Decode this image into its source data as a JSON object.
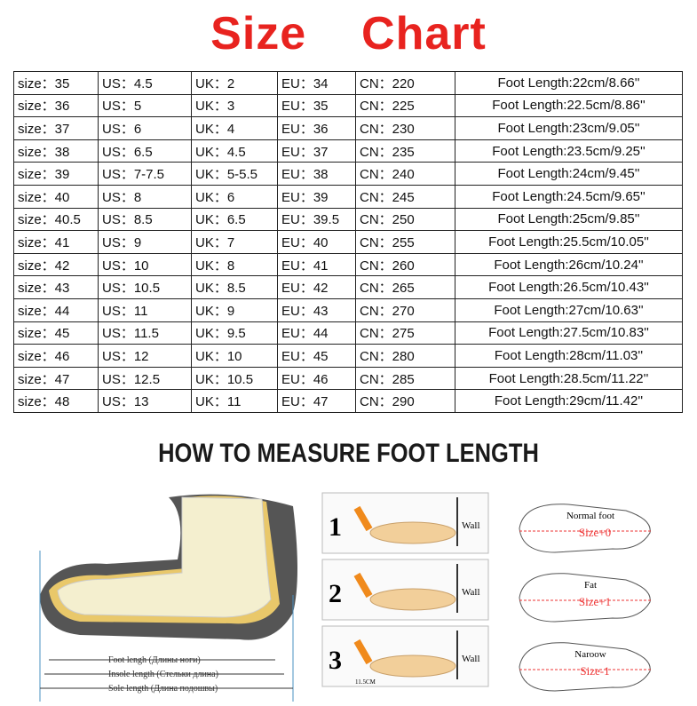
{
  "header": {
    "title": "Size    Chart"
  },
  "table": {
    "rows": [
      [
        "size：35",
        "US：4.5",
        "UK：2",
        "EU：34",
        "CN：220",
        "Foot Length:22cm/8.66''"
      ],
      [
        "size：36",
        "US：5",
        "UK：3",
        "EU：35",
        "CN：225",
        "Foot Length:22.5cm/8.86''"
      ],
      [
        "size：37",
        "US：6",
        "UK：4",
        "EU：36",
        "CN：230",
        "Foot Length:23cm/9.05''"
      ],
      [
        "size：38",
        "US：6.5",
        "UK：4.5",
        "EU：37",
        "CN：235",
        "Foot Length:23.5cm/9.25''"
      ],
      [
        "size：39",
        "US：7-7.5",
        "UK：5-5.5",
        "EU：38",
        "CN：240",
        "Foot Length:24cm/9.45''"
      ],
      [
        "size：40",
        "US：8",
        "UK：6",
        "EU：39",
        "CN：245",
        "Foot Length:24.5cm/9.65''"
      ],
      [
        "size：40.5",
        "US：8.5",
        "UK：6.5",
        "EU：39.5",
        "CN：250",
        "Foot Length:25cm/9.85''"
      ],
      [
        "size：41",
        "US：9",
        "UK：7",
        "EU：40",
        "CN：255",
        "Foot Length:25.5cm/10.05''"
      ],
      [
        "size：42",
        "US：10",
        "UK：8",
        "EU：41",
        "CN：260",
        "Foot Length:26cm/10.24''"
      ],
      [
        "size：43",
        "US：10.5",
        "UK：8.5",
        "EU：42",
        "CN：265",
        "Foot Length:26.5cm/10.43''"
      ],
      [
        "size：44",
        "US：11",
        "UK：9",
        "EU：43",
        "CN：270",
        "Foot Length:27cm/10.63''"
      ],
      [
        "size：45",
        "US：11.5",
        "UK：9.5",
        "EU：44",
        "CN：275",
        "Foot Length:27.5cm/10.83''"
      ],
      [
        "size：46",
        "US：12",
        "UK：10",
        "EU：45",
        "CN：280",
        "Foot Length:28cm/11.03''"
      ],
      [
        "size：47",
        "US：12.5",
        "UK：10.5",
        "EU：46",
        "CN：285",
        "Foot Length:28.5cm/11.22''"
      ],
      [
        "size：48",
        "US：13",
        "UK：11",
        "EU：47",
        "CN：290",
        "Foot Length:29cm/11.42''"
      ]
    ]
  },
  "measure": {
    "title": "HOW TO MEASURE FOOT LENGTH",
    "left": {
      "foot": "Foot lengh (Длины ноги)",
      "insole": "Insole length (Стельки длина)",
      "sole": "Sole length (Длина подошвы)"
    },
    "steps": [
      {
        "number": "1",
        "label": "Wall"
      },
      {
        "number": "2",
        "label": "Wall"
      },
      {
        "number": "3",
        "label": "Wall",
        "ruler": "11.5CM"
      }
    ],
    "types": [
      {
        "name": "Normal foot",
        "size": "Size+0"
      },
      {
        "name": "Fat",
        "size": "Size+1"
      },
      {
        "name": "Naroow",
        "size": "Size-1"
      }
    ]
  }
}
